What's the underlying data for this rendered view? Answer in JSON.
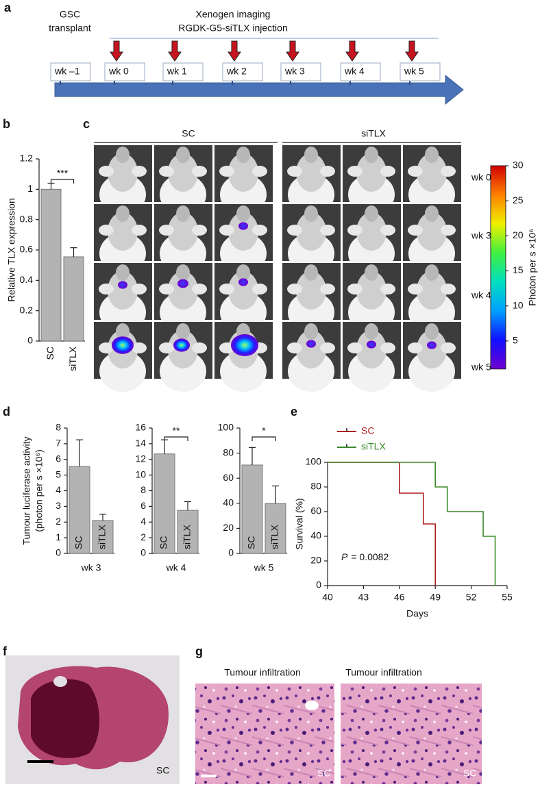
{
  "panel_letters": [
    "a",
    "b",
    "c",
    "d",
    "e",
    "f",
    "g"
  ],
  "timeline": {
    "start_lines": [
      "GSC",
      "transplant"
    ],
    "top_lines": [
      "Xenogen imaging",
      "RGDK-G5-siTLX injection"
    ],
    "weeks": [
      "wk –1",
      "wk 0",
      "wk 1",
      "wk 2",
      "wk 3",
      "wk 4",
      "wk 5"
    ]
  },
  "imaging": {
    "groups": [
      "SC",
      "siTLX"
    ],
    "rows": [
      "wk 0",
      "wk 3",
      "wk 4",
      "wk 5"
    ]
  },
  "histology": {
    "f_label": "SC",
    "g_titles": [
      "Tumour infiltration",
      "Tumour infiltration"
    ],
    "g_labels": [
      "SC",
      "SC"
    ]
  },
  "chart_data": [
    {
      "type": "bar",
      "ylabel": "Relative TLX expression",
      "categories": [
        "SC",
        "siTLX"
      ],
      "values": [
        1,
        0.555
      ],
      "errors": [
        0.04,
        0.06
      ],
      "color": "#b3b3b3",
      "ylim": [
        0,
        1.2
      ],
      "yticks": [
        0,
        0.2,
        0.4,
        0.6,
        0.8,
        1,
        1.2
      ],
      "significance": "***"
    },
    {
      "type": "bar",
      "ylabel_lines": [
        "Tumour luciferase activity",
        "(photon per s ×10⁶)"
      ],
      "xlabel": "wk 3",
      "categories": [
        "SC",
        "siTLX"
      ],
      "values": [
        5.55,
        2.1
      ],
      "errors": [
        1.7,
        0.4
      ],
      "color": "#b3b3b3",
      "ylim": [
        0,
        8
      ],
      "yticks": [
        0,
        1,
        2,
        3,
        4,
        5,
        6,
        7,
        8
      ]
    },
    {
      "type": "bar",
      "xlabel": "wk 4",
      "categories": [
        "SC",
        "siTLX"
      ],
      "values": [
        12.7,
        5.5
      ],
      "errors": [
        1.8,
        1.1
      ],
      "color": "#b3b3b3",
      "ylim": [
        0,
        16
      ],
      "yticks": [
        0,
        2,
        4,
        6,
        8,
        10,
        12,
        14,
        16
      ],
      "significance": "**"
    },
    {
      "type": "bar",
      "xlabel": "wk 5",
      "categories": [
        "SC",
        "siTLX"
      ],
      "values": [
        70.5,
        39.8
      ],
      "errors": [
        14,
        14
      ],
      "color": "#b3b3b3",
      "ylim": [
        0,
        100
      ],
      "yticks": [
        0,
        20,
        40,
        60,
        80,
        100
      ],
      "significance": "*"
    },
    {
      "type": "line",
      "xlabel": "Days",
      "ylabel": "Survival (%)",
      "xlim": [
        40,
        55
      ],
      "xticks": [
        40,
        43,
        46,
        49,
        52,
        55
      ],
      "ylim": [
        0,
        100
      ],
      "yticks": [
        0,
        20,
        40,
        60,
        80,
        100
      ],
      "p_symbol": "P",
      "p_text": "= 0.0082",
      "series": [
        {
          "name": "SC",
          "color": "#b01e23",
          "x": [
            40,
            46,
            46,
            48,
            48,
            49,
            49
          ],
          "values": [
            100,
            100,
            75,
            75,
            50,
            50,
            0
          ]
        },
        {
          "name": "siTLX",
          "color": "#3b8a2a",
          "x": [
            40,
            49,
            49,
            50,
            50,
            53,
            53,
            54,
            54
          ],
          "values": [
            100,
            100,
            80,
            80,
            60,
            60,
            40,
            40,
            0
          ]
        }
      ]
    },
    {
      "type": "colorbar",
      "label": "Photon per s ×10⁶",
      "ylim": [
        1,
        30
      ],
      "yticks": [
        5,
        10,
        15,
        20,
        25,
        30
      ],
      "colors": [
        "#7000d0",
        "#1010ff",
        "#00a0ff",
        "#00e0c0",
        "#40f040",
        "#f0f000",
        "#ff8000",
        "#d00000"
      ]
    }
  ]
}
